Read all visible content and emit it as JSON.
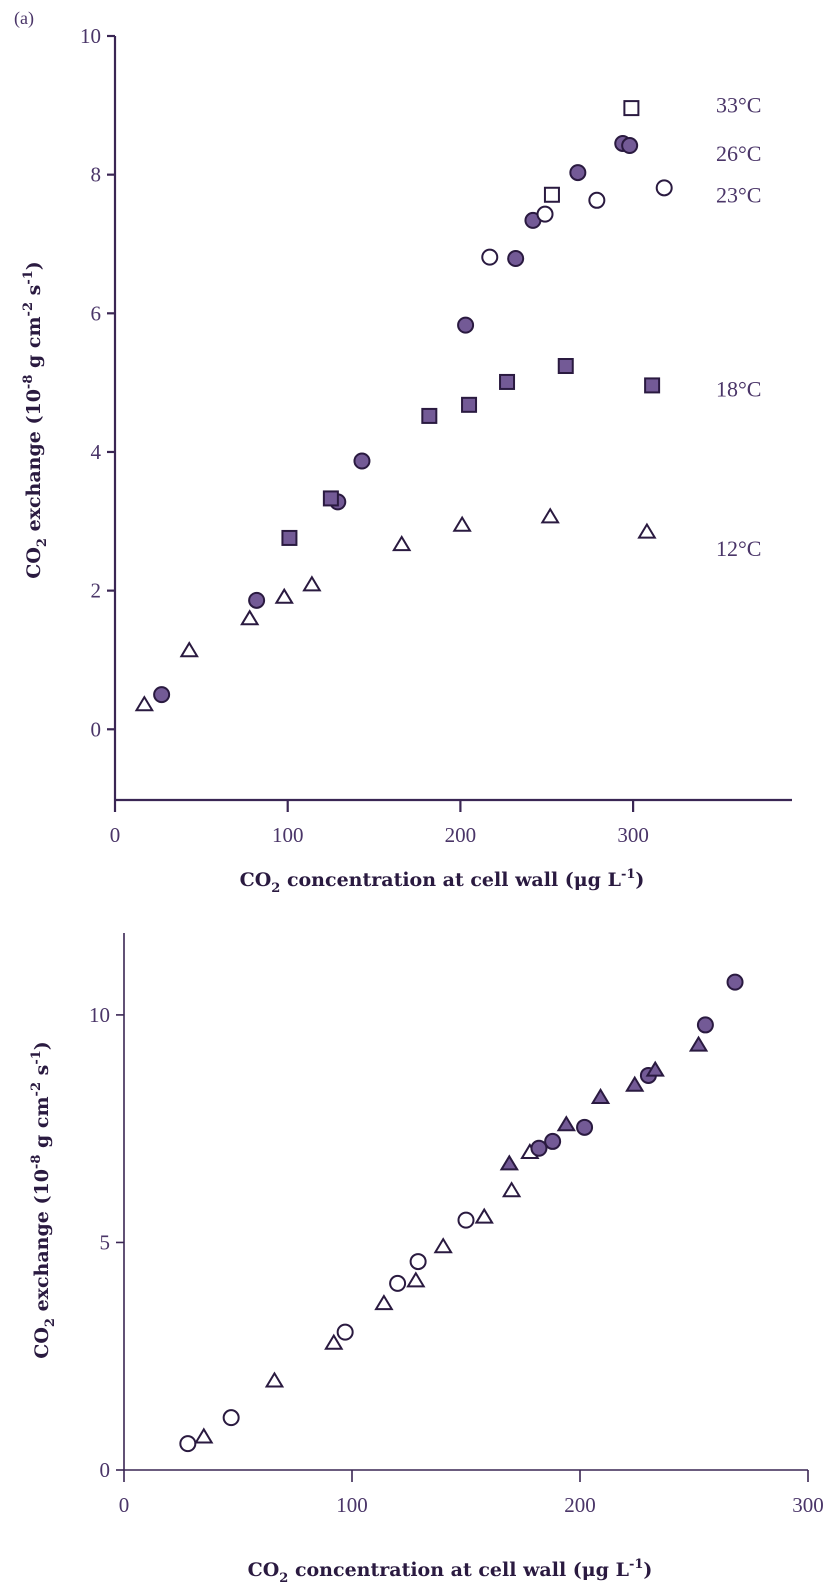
{
  "colors": {
    "axis": "#3a2654",
    "fill": "#735a96",
    "stroke": "#2a1a40",
    "text": "#4a3568"
  },
  "chart_data": [
    {
      "type": "scatter",
      "panel_label": "(a)",
      "title": "",
      "xlabel": {
        "main": "CO",
        "sub": "2",
        "rest": " concentration at cell wall (μg L",
        "sup": "-1",
        "end": ")"
      },
      "ylabel": {
        "main": "CO",
        "sub": "2",
        "rest": " exchange (10",
        "sup1": "-8",
        "mid": " g cm",
        "sup2": "-2",
        "mid2": " s",
        "sup3": "-1",
        "end": ")"
      },
      "xlim": [
        0,
        392
      ],
      "ylim": [
        -1.02,
        10
      ],
      "xticks": [
        0,
        100,
        200,
        300
      ],
      "xtick_labels": [
        "0",
        "100",
        "200",
        "300"
      ],
      "yticks": [
        0,
        2,
        4,
        6,
        8,
        10
      ],
      "ytick_labels": [
        "0",
        "2",
        "4",
        "6",
        "8",
        "10"
      ],
      "grid": false,
      "series": [
        {
          "name": "33°C",
          "marker": "square",
          "filled": false,
          "label_y": 9.0,
          "points": [
            [
              299,
              8.96
            ],
            [
              253,
              7.71
            ]
          ]
        },
        {
          "name": "26°C",
          "marker": "circle",
          "filled": true,
          "label_y": 8.3,
          "points": [
            [
              294,
              8.45
            ],
            [
              298,
              8.42
            ],
            [
              268,
              8.03
            ],
            [
              242,
              7.34
            ],
            [
              232,
              6.79
            ],
            [
              203,
              5.83
            ],
            [
              143,
              3.87
            ],
            [
              129,
              3.28
            ],
            [
              82,
              1.86
            ],
            [
              27,
              0.5
            ]
          ]
        },
        {
          "name": "23°C",
          "marker": "circle",
          "filled": false,
          "label_y": 7.7,
          "points": [
            [
              217,
              6.81
            ],
            [
              249,
              7.43
            ],
            [
              279,
              7.63
            ],
            [
              318,
              7.81
            ]
          ]
        },
        {
          "name": "18°C",
          "marker": "square",
          "filled": true,
          "label_y": 4.9,
          "points": [
            [
              311,
              4.96
            ],
            [
              261,
              5.24
            ],
            [
              227,
              5.01
            ],
            [
              205,
              4.68
            ],
            [
              182,
              4.52
            ],
            [
              125,
              3.33
            ],
            [
              101,
              2.76
            ]
          ]
        },
        {
          "name": "12°C",
          "marker": "triangle",
          "filled": false,
          "label_y": 2.6,
          "points": [
            [
              308,
              2.84
            ],
            [
              252,
              3.06
            ],
            [
              201,
              2.94
            ],
            [
              166,
              2.66
            ],
            [
              114,
              2.08
            ],
            [
              98,
              1.9
            ],
            [
              78,
              1.59
            ],
            [
              43,
              1.13
            ],
            [
              17,
              0.35
            ]
          ]
        }
      ]
    },
    {
      "type": "scatter",
      "panel_label": "",
      "title": "",
      "xlabel": {
        "main": "CO",
        "sub": "2",
        "rest": " concentration at cell wall (μg L",
        "sup": "-1",
        "end": ")"
      },
      "ylabel": {
        "main": "CO",
        "sub": "2",
        "rest": " exchange (10",
        "sup1": "-8",
        "mid": " g cm",
        "sup2": "-2",
        "mid2": " s",
        "sup3": "-1",
        "end": ")"
      },
      "xlim": [
        0,
        300
      ],
      "ylim": [
        0,
        11.8
      ],
      "xticks": [
        0,
        100,
        200,
        300
      ],
      "xtick_labels": [
        "0",
        "100",
        "200",
        "300"
      ],
      "yticks": [
        0,
        5,
        10
      ],
      "ytick_labels": [
        "0",
        "5",
        "10"
      ],
      "grid": false,
      "series": [
        {
          "name": "open circles",
          "marker": "circle",
          "filled": false,
          "points": [
            [
              28,
              0.58
            ],
            [
              47,
              1.15
            ],
            [
              97,
              3.03
            ],
            [
              120,
              4.1
            ],
            [
              129,
              4.58
            ],
            [
              150,
              5.49
            ]
          ]
        },
        {
          "name": "open triangles",
          "marker": "triangle",
          "filled": false,
          "points": [
            [
              35,
              0.72
            ],
            [
              66,
              1.95
            ],
            [
              92,
              2.78
            ],
            [
              114,
              3.65
            ],
            [
              128,
              4.15
            ],
            [
              140,
              4.9
            ],
            [
              158,
              5.55
            ],
            [
              170,
              6.13
            ],
            [
              178,
              6.97
            ]
          ]
        },
        {
          "name": "filled circles",
          "marker": "circle",
          "filled": true,
          "points": [
            [
              182,
              7.07
            ],
            [
              188,
              7.22
            ],
            [
              202,
              7.53
            ],
            [
              230,
              8.67
            ],
            [
              255,
              9.78
            ],
            [
              268,
              10.72
            ]
          ]
        },
        {
          "name": "filled triangles",
          "marker": "triangle",
          "filled": true,
          "points": [
            [
              169,
              6.72
            ],
            [
              194,
              7.58
            ],
            [
              209,
              8.18
            ],
            [
              224,
              8.45
            ],
            [
              233,
              8.78
            ],
            [
              252,
              9.33
            ]
          ]
        }
      ]
    }
  ]
}
